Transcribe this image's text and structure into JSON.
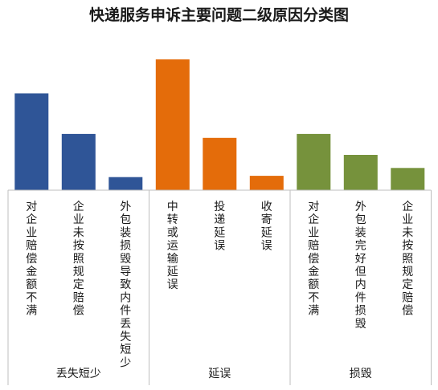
{
  "chart_data": {
    "type": "bar",
    "title": "快递服务申诉主要问题二级原因分类图",
    "xlabel": "",
    "ylabel": "",
    "ylim": [
      0,
      100
    ],
    "grid": false,
    "legend": "none",
    "groups": [
      {
        "name": "丢失短少",
        "color": "#2f5597"
      },
      {
        "name": "延误",
        "color": "#e46c0a"
      },
      {
        "name": "损毁",
        "color": "#76923c"
      }
    ],
    "categories": [
      "对企业赔偿金额不满",
      "企业未按照规定赔偿",
      "外包装损毁导致内件丢失短少",
      "中转或运输延误",
      "投递延误",
      "收寄延误",
      "对企业赔偿金额不满",
      "外包装完好但内件损毁",
      "企业未按照规定赔偿"
    ],
    "category_group": [
      0,
      0,
      0,
      1,
      1,
      1,
      2,
      2,
      2
    ],
    "values": [
      74,
      43,
      10,
      100,
      40,
      11,
      43,
      27,
      17
    ]
  }
}
